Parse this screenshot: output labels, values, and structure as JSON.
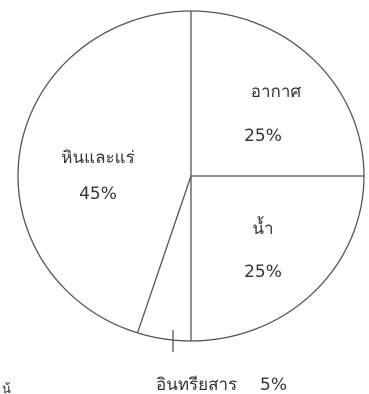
{
  "chart_data": {
    "type": "pie",
    "slices": [
      {
        "label": "อากาศ",
        "value": 25,
        "value_label": "25%"
      },
      {
        "label": "น้ำ",
        "value": 25,
        "value_label": "25%"
      },
      {
        "label": "อินทรียสาร",
        "value": 5,
        "value_label": "5%"
      },
      {
        "label": "หินและแร่",
        "value": 45,
        "value_label": "45%"
      }
    ],
    "stray_mark": "น้"
  },
  "colors": {
    "outline": "#555555",
    "text": "#333333",
    "fill": "#ffffff"
  }
}
